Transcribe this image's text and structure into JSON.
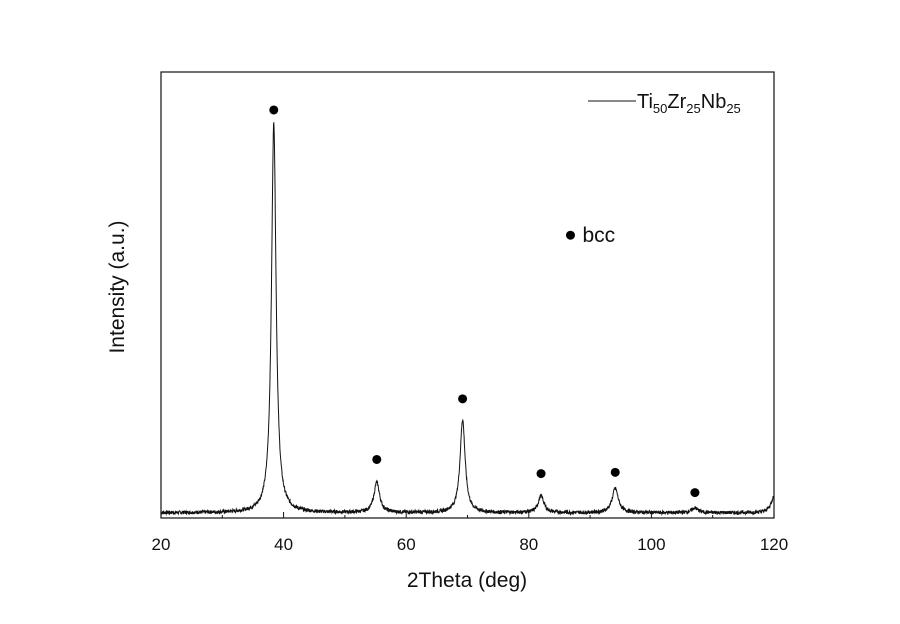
{
  "chart_data": {
    "type": "line",
    "xlabel": "2Theta (deg)",
    "ylabel": "Intensity (a.u.)",
    "xlim": [
      20,
      120
    ],
    "ylim": [
      0,
      100
    ],
    "x_ticks": [
      20,
      40,
      60,
      80,
      100,
      120
    ],
    "y_ticks_shown": false,
    "grid": false,
    "legend": {
      "placement": "top-right",
      "label": {
        "base1": "Ti",
        "sub1": "50",
        "base2": "Zr",
        "sub2": "25",
        "base3": "Nb",
        "sub3": "25"
      }
    },
    "colors": {
      "line": "#111111",
      "marker": "#000000"
    },
    "series": [
      {
        "baseline": 0.8,
        "peaks": [
          {
            "x": 38.4,
            "height": 96.5,
            "width": 0.45
          },
          {
            "x": 55.2,
            "height": 7.5,
            "width": 0.55
          },
          {
            "x": 69.2,
            "height": 23.0,
            "width": 0.5
          },
          {
            "x": 82.0,
            "height": 4.2,
            "width": 0.55
          },
          {
            "x": 94.1,
            "height": 6.0,
            "width": 0.6
          },
          {
            "x": 107.1,
            "height": 1.2,
            "width": 0.6
          },
          {
            "x": 120.0,
            "height": 4.0,
            "width": 0.6
          }
        ]
      }
    ],
    "peak_markers": [
      {
        "x": 38.4,
        "y": 100.5
      },
      {
        "x": 55.2,
        "y": 14.0
      },
      {
        "x": 69.2,
        "y": 29.0
      },
      {
        "x": 82.0,
        "y": 10.5
      },
      {
        "x": 94.1,
        "y": 10.8
      },
      {
        "x": 107.1,
        "y": 5.8
      }
    ],
    "annotation": {
      "marker": "●",
      "text": "bcc",
      "x": 86.8,
      "y": 69.5
    }
  }
}
